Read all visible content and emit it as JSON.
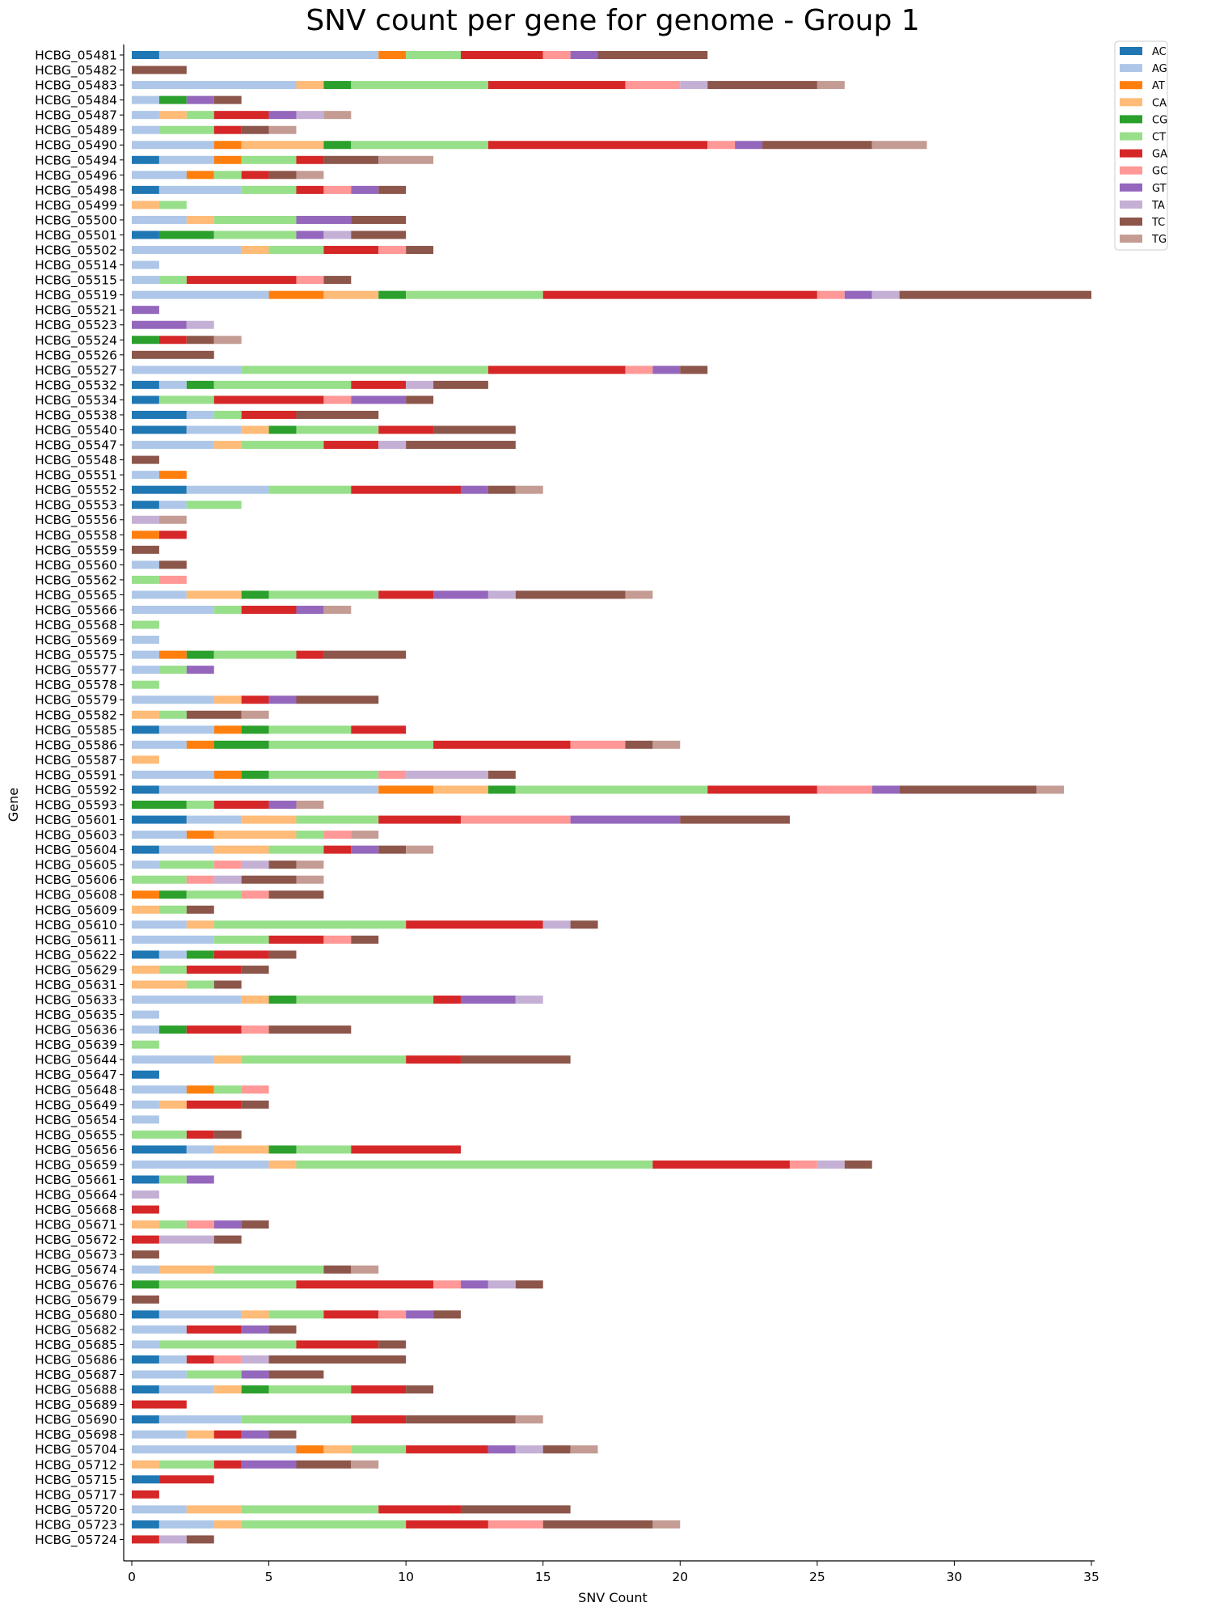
{
  "chart_data": {
    "type": "bar",
    "orientation": "horizontal",
    "stacked": true,
    "title": "SNV count per gene for genome - Group 1",
    "xlabel": "SNV Count",
    "ylabel": "Gene",
    "xlim": [
      0,
      35
    ],
    "xticks": [
      0,
      5,
      10,
      15,
      20,
      25,
      30,
      35
    ],
    "grid": false,
    "legend_position": "top-right outside",
    "series_names": [
      "AC",
      "AG",
      "AT",
      "CA",
      "CG",
      "CT",
      "GA",
      "GC",
      "GT",
      "TA",
      "TC",
      "TG"
    ],
    "colors": {
      "AC": "#1f77b4",
      "AG": "#aec7e8",
      "AT": "#ff7f0e",
      "CA": "#ffbb78",
      "CG": "#2ca02c",
      "CT": "#98df8a",
      "GA": "#d62728",
      "GC": "#ff9896",
      "GT": "#9467bd",
      "TA": "#c5b0d5",
      "TC": "#8c564b",
      "TG": "#c49c94"
    },
    "genes": [
      {
        "name": "HCBG_05481",
        "counts": {
          "AC": 1,
          "AG": 8,
          "AT": 1,
          "CT": 2,
          "GA": 3,
          "GC": 1,
          "GT": 1,
          "TC": 4
        }
      },
      {
        "name": "HCBG_05482",
        "counts": {
          "TC": 2
        }
      },
      {
        "name": "HCBG_05483",
        "counts": {
          "AG": 6,
          "CA": 1,
          "CG": 1,
          "CT": 5,
          "GA": 5,
          "GC": 2,
          "TA": 1,
          "TC": 4,
          "TG": 1
        }
      },
      {
        "name": "HCBG_05484",
        "counts": {
          "AG": 1,
          "CG": 1,
          "GT": 1,
          "TC": 1
        }
      },
      {
        "name": "HCBG_05487",
        "counts": {
          "AG": 1,
          "CA": 1,
          "CT": 1,
          "GA": 2,
          "GT": 1,
          "TA": 1,
          "TG": 1
        }
      },
      {
        "name": "HCBG_05489",
        "counts": {
          "AG": 1,
          "CT": 2,
          "GA": 1,
          "TC": 1,
          "TG": 1
        }
      },
      {
        "name": "HCBG_05490",
        "counts": {
          "AG": 3,
          "AT": 1,
          "CA": 3,
          "CG": 1,
          "CT": 5,
          "GA": 8,
          "GC": 1,
          "GT": 1,
          "TC": 4,
          "TG": 2
        }
      },
      {
        "name": "HCBG_05494",
        "counts": {
          "AC": 1,
          "AG": 2,
          "AT": 1,
          "CT": 2,
          "GA": 1,
          "TC": 2,
          "TG": 2
        }
      },
      {
        "name": "HCBG_05496",
        "counts": {
          "AG": 2,
          "AT": 1,
          "CT": 1,
          "GA": 1,
          "TC": 1,
          "TG": 1
        }
      },
      {
        "name": "HCBG_05498",
        "counts": {
          "AC": 1,
          "AG": 3,
          "CT": 2,
          "GA": 1,
          "GC": 1,
          "GT": 1,
          "TC": 1
        }
      },
      {
        "name": "HCBG_05499",
        "counts": {
          "CA": 1,
          "CT": 1
        }
      },
      {
        "name": "HCBG_05500",
        "counts": {
          "AG": 2,
          "CA": 1,
          "CT": 3,
          "GT": 2,
          "TC": 2
        }
      },
      {
        "name": "HCBG_05501",
        "counts": {
          "AC": 1,
          "CG": 2,
          "CT": 3,
          "GT": 1,
          "TA": 1,
          "TC": 2
        }
      },
      {
        "name": "HCBG_05502",
        "counts": {
          "AG": 4,
          "CA": 1,
          "CT": 2,
          "GA": 2,
          "GC": 1,
          "TC": 1
        }
      },
      {
        "name": "HCBG_05514",
        "counts": {
          "AG": 1
        }
      },
      {
        "name": "HCBG_05515",
        "counts": {
          "AG": 1,
          "CT": 1,
          "GA": 4,
          "GC": 1,
          "TC": 1
        }
      },
      {
        "name": "HCBG_05519",
        "counts": {
          "AG": 5,
          "AT": 2,
          "CA": 2,
          "CG": 1,
          "CT": 5,
          "GA": 10,
          "GC": 1,
          "GT": 1,
          "TA": 1,
          "TC": 7
        }
      },
      {
        "name": "HCBG_05521",
        "counts": {
          "GT": 1
        }
      },
      {
        "name": "HCBG_05523",
        "counts": {
          "GT": 2,
          "TA": 1
        }
      },
      {
        "name": "HCBG_05524",
        "counts": {
          "CG": 1,
          "GA": 1,
          "TC": 1,
          "TG": 1
        }
      },
      {
        "name": "HCBG_05526",
        "counts": {
          "TC": 3
        }
      },
      {
        "name": "HCBG_05527",
        "counts": {
          "AG": 4,
          "CT": 9,
          "GA": 5,
          "GC": 1,
          "GT": 1,
          "TC": 1
        }
      },
      {
        "name": "HCBG_05532",
        "counts": {
          "AC": 1,
          "AG": 1,
          "CG": 1,
          "CT": 5,
          "GA": 2,
          "TA": 1,
          "TC": 2
        }
      },
      {
        "name": "HCBG_05534",
        "counts": {
          "AC": 1,
          "CT": 2,
          "GA": 4,
          "GC": 1,
          "GT": 2,
          "TC": 1
        }
      },
      {
        "name": "HCBG_05538",
        "counts": {
          "AC": 2,
          "AG": 1,
          "CT": 1,
          "GA": 2,
          "TC": 3
        }
      },
      {
        "name": "HCBG_05540",
        "counts": {
          "AC": 2,
          "AG": 2,
          "CA": 1,
          "CG": 1,
          "CT": 3,
          "GA": 2,
          "TC": 3
        }
      },
      {
        "name": "HCBG_05547",
        "counts": {
          "AG": 3,
          "CA": 1,
          "CT": 3,
          "GA": 2,
          "TA": 1,
          "TC": 4
        }
      },
      {
        "name": "HCBG_05548",
        "counts": {
          "TC": 1
        }
      },
      {
        "name": "HCBG_05551",
        "counts": {
          "AG": 1,
          "AT": 1
        }
      },
      {
        "name": "HCBG_05552",
        "counts": {
          "AC": 2,
          "AG": 3,
          "CT": 3,
          "GA": 4,
          "GT": 1,
          "TC": 1,
          "TG": 1
        }
      },
      {
        "name": "HCBG_05553",
        "counts": {
          "AC": 1,
          "AG": 1,
          "CT": 2
        }
      },
      {
        "name": "HCBG_05556",
        "counts": {
          "TA": 1,
          "TG": 1
        }
      },
      {
        "name": "HCBG_05558",
        "counts": {
          "AT": 1,
          "GA": 1
        }
      },
      {
        "name": "HCBG_05559",
        "counts": {
          "TC": 1
        }
      },
      {
        "name": "HCBG_05560",
        "counts": {
          "AG": 1,
          "TC": 1
        }
      },
      {
        "name": "HCBG_05562",
        "counts": {
          "CT": 1,
          "GC": 1
        }
      },
      {
        "name": "HCBG_05565",
        "counts": {
          "AG": 2,
          "CA": 2,
          "CG": 1,
          "CT": 4,
          "GA": 2,
          "GT": 2,
          "TA": 1,
          "TC": 4,
          "TG": 1
        }
      },
      {
        "name": "HCBG_05566",
        "counts": {
          "AG": 3,
          "CT": 1,
          "GA": 2,
          "GT": 1,
          "TG": 1
        }
      },
      {
        "name": "HCBG_05568",
        "counts": {
          "CT": 1
        }
      },
      {
        "name": "HCBG_05569",
        "counts": {
          "AG": 1
        }
      },
      {
        "name": "HCBG_05575",
        "counts": {
          "AG": 1,
          "AT": 1,
          "CG": 1,
          "CT": 3,
          "GA": 1,
          "TC": 3
        }
      },
      {
        "name": "HCBG_05577",
        "counts": {
          "AG": 1,
          "CT": 1,
          "GT": 1
        }
      },
      {
        "name": "HCBG_05578",
        "counts": {
          "CT": 1
        }
      },
      {
        "name": "HCBG_05579",
        "counts": {
          "AG": 3,
          "CA": 1,
          "GA": 1,
          "GT": 1,
          "TC": 3
        }
      },
      {
        "name": "HCBG_05582",
        "counts": {
          "CA": 1,
          "CT": 1,
          "TC": 2,
          "TG": 1
        }
      },
      {
        "name": "HCBG_05585",
        "counts": {
          "AC": 1,
          "AG": 2,
          "AT": 1,
          "CG": 1,
          "CT": 3,
          "GA": 2
        }
      },
      {
        "name": "HCBG_05586",
        "counts": {
          "AG": 2,
          "AT": 1,
          "CG": 2,
          "CT": 6,
          "GA": 5,
          "GC": 2,
          "TC": 1,
          "TG": 1
        }
      },
      {
        "name": "HCBG_05587",
        "counts": {
          "CA": 1
        }
      },
      {
        "name": "HCBG_05591",
        "counts": {
          "AG": 3,
          "AT": 1,
          "CG": 1,
          "CT": 4,
          "GC": 1,
          "TA": 3,
          "TC": 1
        }
      },
      {
        "name": "HCBG_05592",
        "counts": {
          "AC": 1,
          "AG": 8,
          "AT": 2,
          "CA": 2,
          "CG": 1,
          "CT": 7,
          "GA": 4,
          "GC": 2,
          "GT": 1,
          "TC": 5,
          "TG": 1
        }
      },
      {
        "name": "HCBG_05593",
        "counts": {
          "CG": 2,
          "CT": 1,
          "GA": 2,
          "GT": 1,
          "TG": 1
        }
      },
      {
        "name": "HCBG_05601",
        "counts": {
          "AC": 2,
          "AG": 2,
          "CA": 2,
          "CT": 3,
          "GA": 3,
          "GC": 4,
          "GT": 4,
          "TC": 4
        }
      },
      {
        "name": "HCBG_05603",
        "counts": {
          "AG": 2,
          "AT": 1,
          "CA": 3,
          "CT": 1,
          "GC": 1,
          "TG": 1
        }
      },
      {
        "name": "HCBG_05604",
        "counts": {
          "AC": 1,
          "AG": 2,
          "CA": 2,
          "CT": 2,
          "GA": 1,
          "GT": 1,
          "TC": 1,
          "TG": 1
        }
      },
      {
        "name": "HCBG_05605",
        "counts": {
          "AG": 1,
          "CT": 2,
          "GC": 1,
          "TA": 1,
          "TC": 1,
          "TG": 1
        }
      },
      {
        "name": "HCBG_05606",
        "counts": {
          "CT": 2,
          "GC": 1,
          "TA": 1,
          "TC": 2,
          "TG": 1
        }
      },
      {
        "name": "HCBG_05608",
        "counts": {
          "AT": 1,
          "CG": 1,
          "CT": 2,
          "GC": 1,
          "TC": 2
        }
      },
      {
        "name": "HCBG_05609",
        "counts": {
          "CA": 1,
          "CT": 1,
          "TC": 1
        }
      },
      {
        "name": "HCBG_05610",
        "counts": {
          "AG": 2,
          "CA": 1,
          "CT": 7,
          "GA": 5,
          "TA": 1,
          "TC": 1
        }
      },
      {
        "name": "HCBG_05611",
        "counts": {
          "AG": 3,
          "CT": 2,
          "GA": 2,
          "GC": 1,
          "TC": 1
        }
      },
      {
        "name": "HCBG_05622",
        "counts": {
          "AC": 1,
          "AG": 1,
          "CG": 1,
          "GA": 2,
          "TC": 1
        }
      },
      {
        "name": "HCBG_05629",
        "counts": {
          "CA": 1,
          "CT": 1,
          "GA": 2,
          "TC": 1
        }
      },
      {
        "name": "HCBG_05631",
        "counts": {
          "CA": 2,
          "CT": 1,
          "TC": 1
        }
      },
      {
        "name": "HCBG_05633",
        "counts": {
          "AG": 4,
          "CA": 1,
          "CG": 1,
          "CT": 5,
          "GA": 1,
          "GT": 2,
          "TA": 1
        }
      },
      {
        "name": "HCBG_05635",
        "counts": {
          "AG": 1
        }
      },
      {
        "name": "HCBG_05636",
        "counts": {
          "AG": 1,
          "CG": 1,
          "GA": 2,
          "GC": 1,
          "TC": 3
        }
      },
      {
        "name": "HCBG_05639",
        "counts": {
          "CT": 1
        }
      },
      {
        "name": "HCBG_05644",
        "counts": {
          "AG": 3,
          "CA": 1,
          "CT": 6,
          "GA": 2,
          "TC": 4
        }
      },
      {
        "name": "HCBG_05647",
        "counts": {
          "AC": 1
        }
      },
      {
        "name": "HCBG_05648",
        "counts": {
          "AG": 2,
          "AT": 1,
          "CT": 1,
          "GC": 1
        }
      },
      {
        "name": "HCBG_05649",
        "counts": {
          "AG": 1,
          "CA": 1,
          "GA": 2,
          "TC": 1
        }
      },
      {
        "name": "HCBG_05654",
        "counts": {
          "AG": 1
        }
      },
      {
        "name": "HCBG_05655",
        "counts": {
          "CT": 2,
          "GA": 1,
          "TC": 1
        }
      },
      {
        "name": "HCBG_05656",
        "counts": {
          "AC": 2,
          "AG": 1,
          "CA": 2,
          "CG": 1,
          "CT": 2,
          "GA": 4
        }
      },
      {
        "name": "HCBG_05659",
        "counts": {
          "AG": 5,
          "CA": 1,
          "CT": 13,
          "GA": 5,
          "GC": 1,
          "TA": 1,
          "TC": 1
        }
      },
      {
        "name": "HCBG_05661",
        "counts": {
          "AC": 1,
          "CT": 1,
          "GT": 1
        }
      },
      {
        "name": "HCBG_05664",
        "counts": {
          "TA": 1
        }
      },
      {
        "name": "HCBG_05668",
        "counts": {
          "GA": 1
        }
      },
      {
        "name": "HCBG_05671",
        "counts": {
          "CA": 1,
          "CT": 1,
          "GC": 1,
          "GT": 1,
          "TC": 1
        }
      },
      {
        "name": "HCBG_05672",
        "counts": {
          "GA": 1,
          "TA": 2,
          "TC": 1
        }
      },
      {
        "name": "HCBG_05673",
        "counts": {
          "TC": 1
        }
      },
      {
        "name": "HCBG_05674",
        "counts": {
          "AG": 1,
          "CA": 2,
          "CT": 4,
          "TC": 1,
          "TG": 1
        }
      },
      {
        "name": "HCBG_05676",
        "counts": {
          "CG": 1,
          "CT": 5,
          "GA": 5,
          "GC": 1,
          "GT": 1,
          "TA": 1,
          "TC": 1
        }
      },
      {
        "name": "HCBG_05679",
        "counts": {
          "TC": 1
        }
      },
      {
        "name": "HCBG_05680",
        "counts": {
          "AC": 1,
          "AG": 3,
          "CA": 1,
          "CT": 2,
          "GA": 2,
          "GC": 1,
          "GT": 1,
          "TC": 1
        }
      },
      {
        "name": "HCBG_05682",
        "counts": {
          "AG": 2,
          "GA": 2,
          "GT": 1,
          "TC": 1
        }
      },
      {
        "name": "HCBG_05685",
        "counts": {
          "AG": 1,
          "CT": 5,
          "GA": 3,
          "TC": 1
        }
      },
      {
        "name": "HCBG_05686",
        "counts": {
          "AC": 1,
          "AG": 1,
          "GA": 1,
          "GC": 1,
          "TA": 1,
          "TC": 5
        }
      },
      {
        "name": "HCBG_05687",
        "counts": {
          "AG": 2,
          "CT": 2,
          "GT": 1,
          "TC": 2
        }
      },
      {
        "name": "HCBG_05688",
        "counts": {
          "AC": 1,
          "AG": 2,
          "CA": 1,
          "CG": 1,
          "CT": 3,
          "GA": 2,
          "TC": 1
        }
      },
      {
        "name": "HCBG_05689",
        "counts": {
          "GA": 2
        }
      },
      {
        "name": "HCBG_05690",
        "counts": {
          "AC": 1,
          "AG": 3,
          "CT": 4,
          "GA": 2,
          "TC": 4,
          "TG": 1
        }
      },
      {
        "name": "HCBG_05698",
        "counts": {
          "AG": 2,
          "CA": 1,
          "GA": 1,
          "GT": 1,
          "TC": 1
        }
      },
      {
        "name": "HCBG_05704",
        "counts": {
          "AG": 6,
          "AT": 1,
          "CA": 1,
          "CT": 2,
          "GA": 3,
          "GT": 1,
          "TA": 1,
          "TC": 1,
          "TG": 1
        }
      },
      {
        "name": "HCBG_05712",
        "counts": {
          "CA": 1,
          "CT": 2,
          "GA": 1,
          "GT": 2,
          "TC": 2,
          "TG": 1
        }
      },
      {
        "name": "HCBG_05715",
        "counts": {
          "AC": 1,
          "GA": 2
        }
      },
      {
        "name": "HCBG_05717",
        "counts": {
          "GA": 1
        }
      },
      {
        "name": "HCBG_05720",
        "counts": {
          "AG": 2,
          "CA": 2,
          "CT": 5,
          "GA": 3,
          "TC": 4
        }
      },
      {
        "name": "HCBG_05723",
        "counts": {
          "AC": 1,
          "AG": 2,
          "CA": 1,
          "CT": 6,
          "GA": 3,
          "GC": 2,
          "TC": 4,
          "TG": 1
        }
      },
      {
        "name": "HCBG_05724",
        "counts": {
          "GA": 1,
          "TA": 1,
          "TC": 1
        }
      }
    ]
  }
}
